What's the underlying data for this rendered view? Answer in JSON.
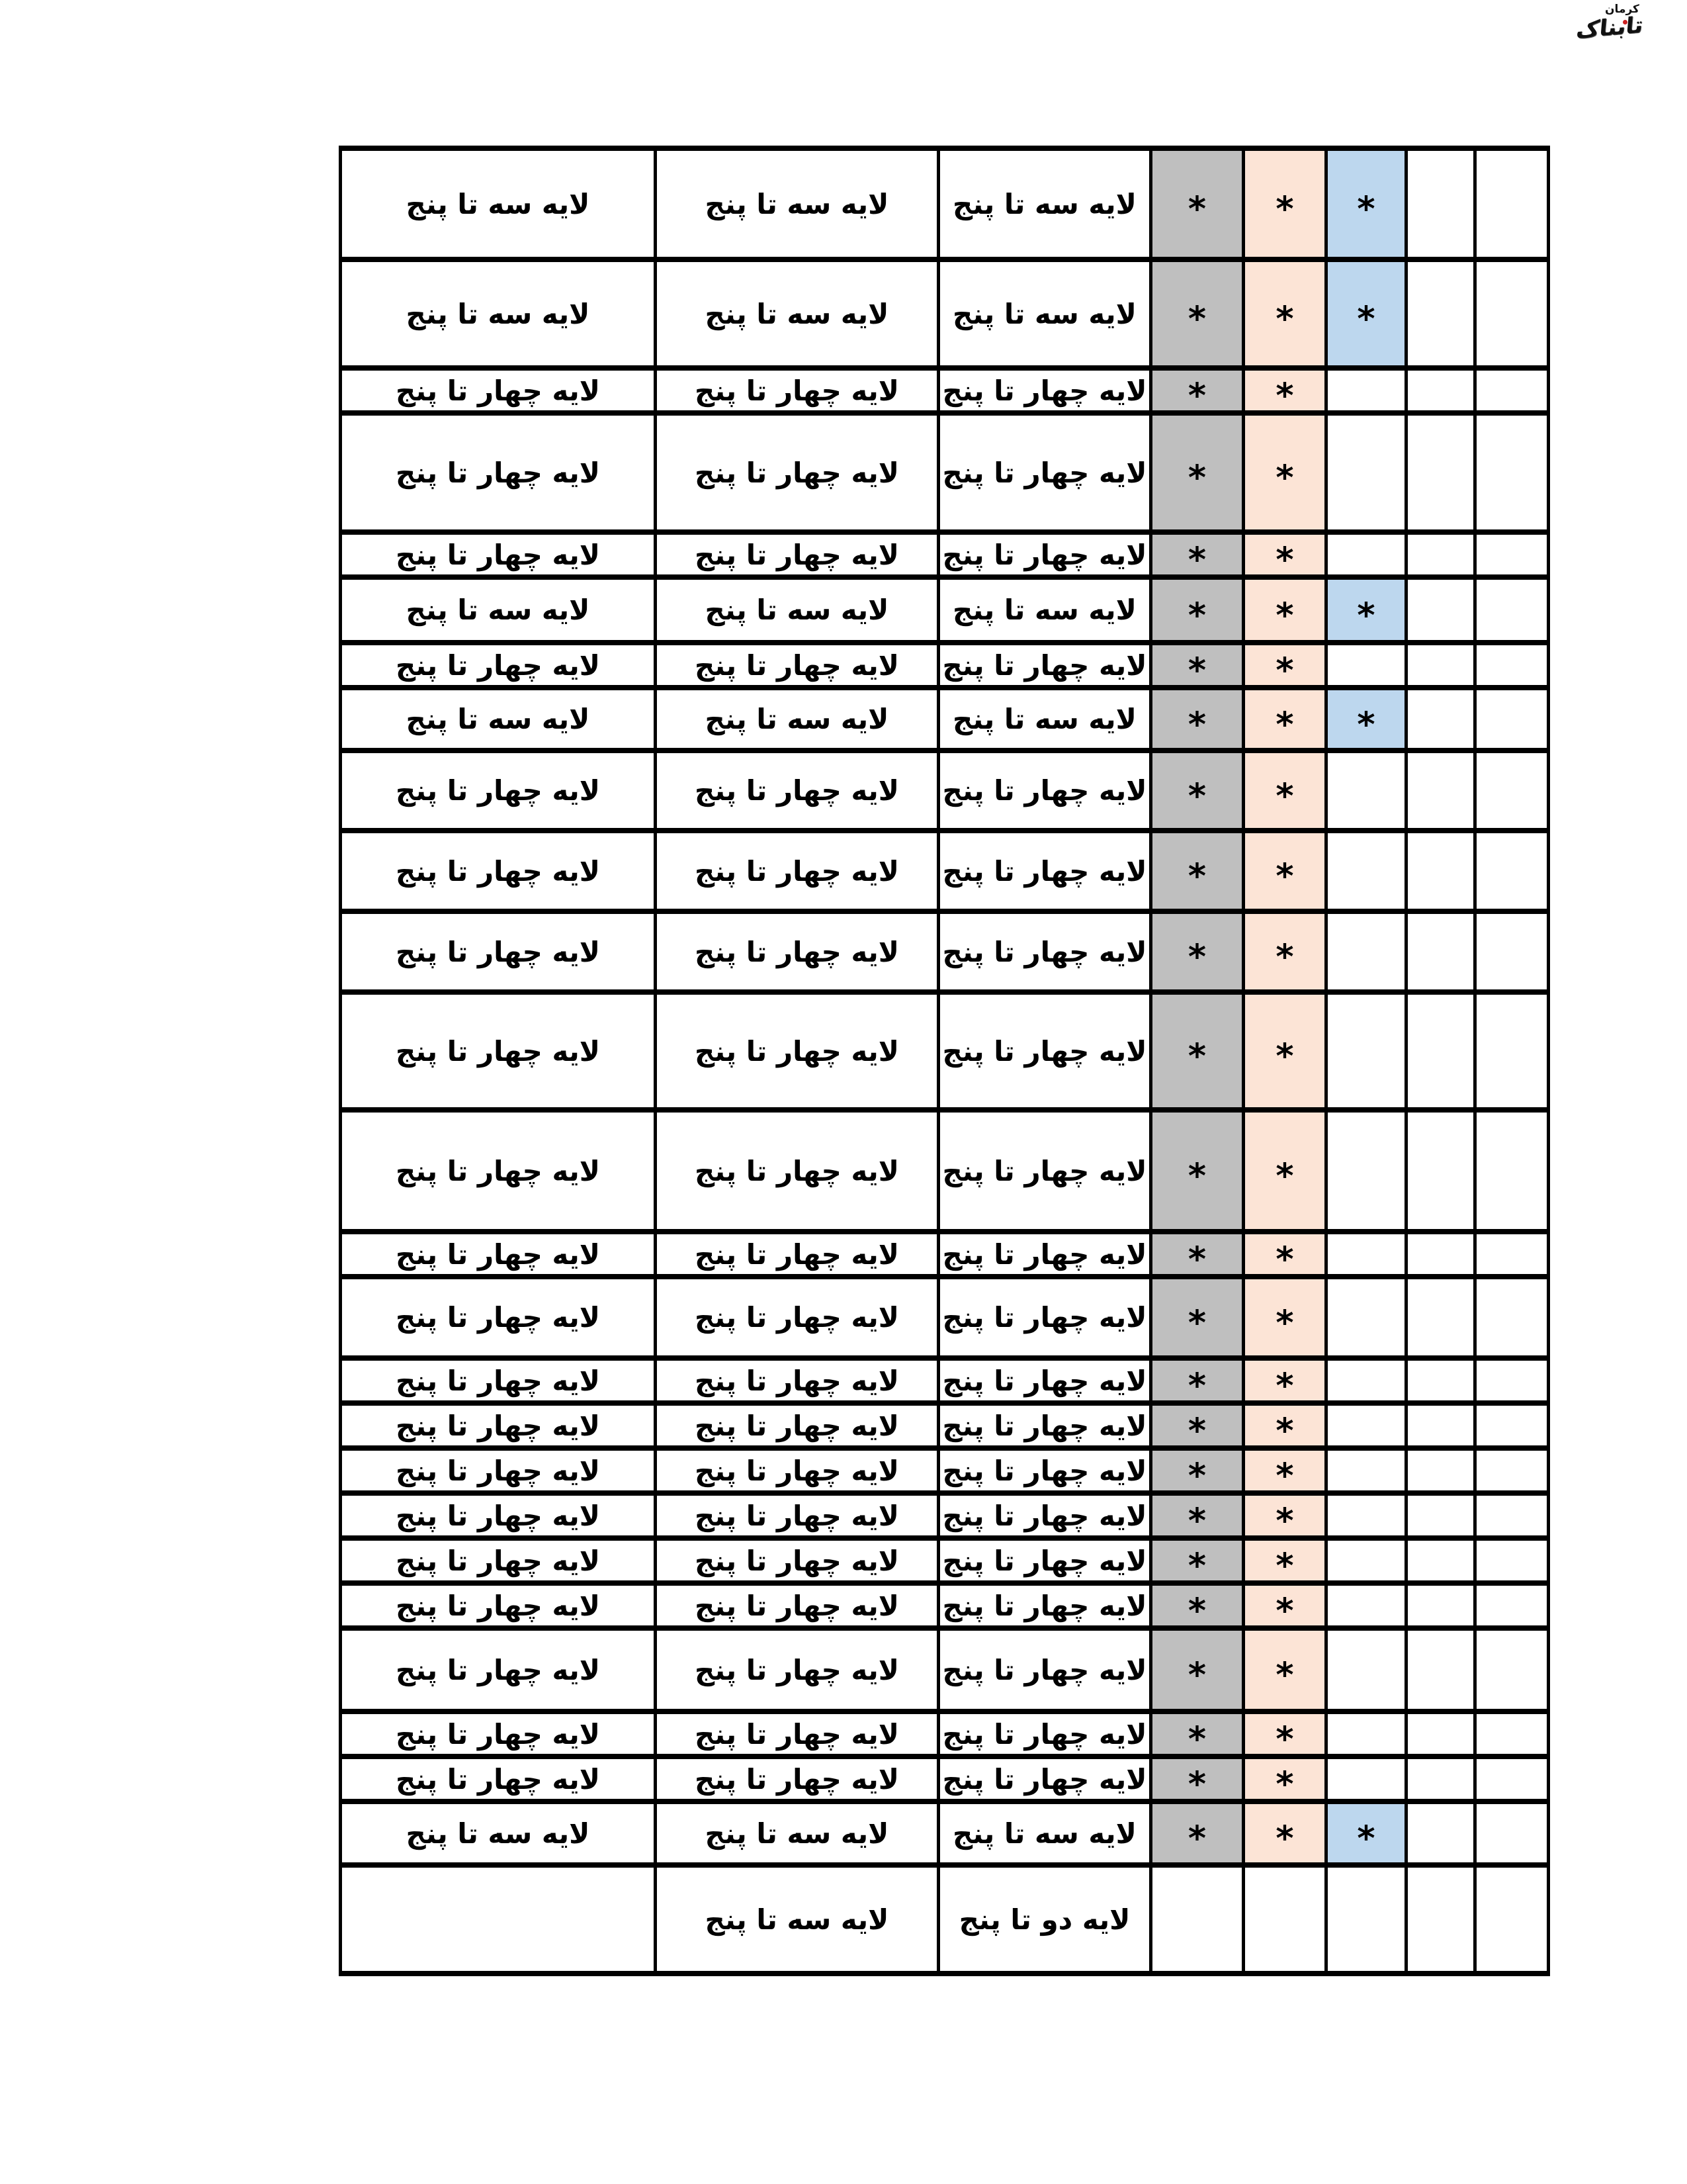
{
  "logo": {
    "brand": "تابناک",
    "city": "کرمان",
    "dot_color": "#cc2222"
  },
  "table": {
    "texts": {
      "seh": "لایه سه تا پنج",
      "chahar": "لایه چهار تا پنج",
      "do": "لایه دو تا پنج"
    },
    "star": "*",
    "colors": {
      "gray": "#BFBFBF",
      "peach": "#FCE4D6",
      "blue": "#BDD7EE",
      "border": "#000000"
    },
    "rows": [
      {
        "h": 168,
        "a": "seh",
        "b": "seh",
        "c": "seh",
        "stars": 3,
        "plain": false
      },
      {
        "h": 164,
        "a": "seh",
        "b": "seh",
        "c": "seh",
        "stars": 3,
        "plain": false
      },
      {
        "h": 65,
        "a": "chahar",
        "b": "chahar",
        "c": "chahar",
        "stars": 2,
        "plain": false
      },
      {
        "h": 180,
        "a": "chahar",
        "b": "chahar",
        "c": "chahar",
        "stars": 2,
        "plain": false
      },
      {
        "h": 61,
        "a": "chahar",
        "b": "chahar",
        "c": "chahar",
        "stars": 2,
        "plain": false
      },
      {
        "h": 99,
        "a": "seh",
        "b": "seh",
        "c": "seh",
        "stars": 3,
        "plain": false
      },
      {
        "h": 65,
        "a": "chahar",
        "b": "chahar",
        "c": "chahar",
        "stars": 2,
        "plain": false
      },
      {
        "h": 95,
        "a": "seh",
        "b": "seh",
        "c": "seh",
        "stars": 3,
        "plain": false
      },
      {
        "h": 121,
        "a": "chahar",
        "b": "chahar",
        "c": "chahar",
        "stars": 2,
        "plain": false
      },
      {
        "h": 122,
        "a": "chahar",
        "b": "chahar",
        "c": "chahar",
        "stars": 2,
        "plain": false
      },
      {
        "h": 122,
        "a": "chahar",
        "b": "chahar",
        "c": "chahar",
        "stars": 2,
        "plain": false
      },
      {
        "h": 178,
        "a": "chahar",
        "b": "chahar",
        "c": "chahar",
        "stars": 2,
        "plain": false
      },
      {
        "h": 184,
        "a": "chahar",
        "b": "chahar",
        "c": "chahar",
        "stars": 2,
        "plain": false
      },
      {
        "h": 61,
        "a": "chahar",
        "b": "chahar",
        "c": "chahar",
        "stars": 2,
        "plain": false
      },
      {
        "h": 123,
        "a": "chahar",
        "b": "chahar",
        "c": "chahar",
        "stars": 2,
        "plain": false
      },
      {
        "h": 64,
        "a": "chahar",
        "b": "chahar",
        "c": "chahar",
        "stars": 2,
        "plain": false
      },
      {
        "h": 63,
        "a": "chahar",
        "b": "chahar",
        "c": "chahar",
        "stars": 2,
        "plain": false
      },
      {
        "h": 62,
        "a": "chahar",
        "b": "chahar",
        "c": "chahar",
        "stars": 2,
        "plain": false
      },
      {
        "h": 65,
        "a": "chahar",
        "b": "chahar",
        "c": "chahar",
        "stars": 2,
        "plain": false
      },
      {
        "h": 63,
        "a": "chahar",
        "b": "chahar",
        "c": "chahar",
        "stars": 2,
        "plain": false
      },
      {
        "h": 60,
        "a": "chahar",
        "b": "chahar",
        "c": "chahar",
        "stars": 2,
        "plain": false
      },
      {
        "h": 126,
        "a": "chahar",
        "b": "chahar",
        "c": "chahar",
        "stars": 2,
        "plain": false
      },
      {
        "h": 62,
        "a": "chahar",
        "b": "chahar",
        "c": "chahar",
        "stars": 2,
        "plain": false
      },
      {
        "h": 64,
        "a": "chahar",
        "b": "chahar",
        "c": "chahar",
        "stars": 2,
        "plain": false
      },
      {
        "h": 96,
        "a": "seh",
        "b": "seh",
        "c": "seh",
        "stars": 3,
        "plain": false
      },
      {
        "h": 164,
        "a": "",
        "b": "seh",
        "c": "do",
        "stars": 0,
        "plain": true
      }
    ]
  }
}
